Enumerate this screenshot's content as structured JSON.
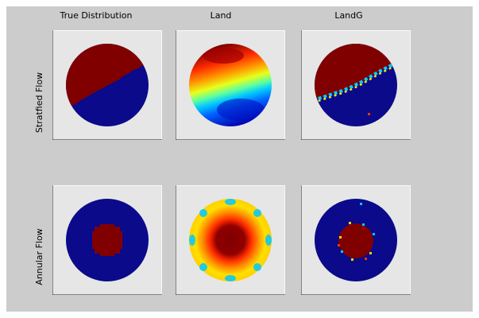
{
  "figure": {
    "columns": [
      "True Distribution",
      "Land",
      "LandG"
    ],
    "rows": [
      "Stratfied Flow",
      "Annular Flow"
    ]
  },
  "colors": {
    "figure_background": "#cccccc",
    "axes_background": "#e6e6e6",
    "dark_red": "#800000",
    "dark_blue": "#0a0a8a",
    "colormap": "jet"
  }
}
